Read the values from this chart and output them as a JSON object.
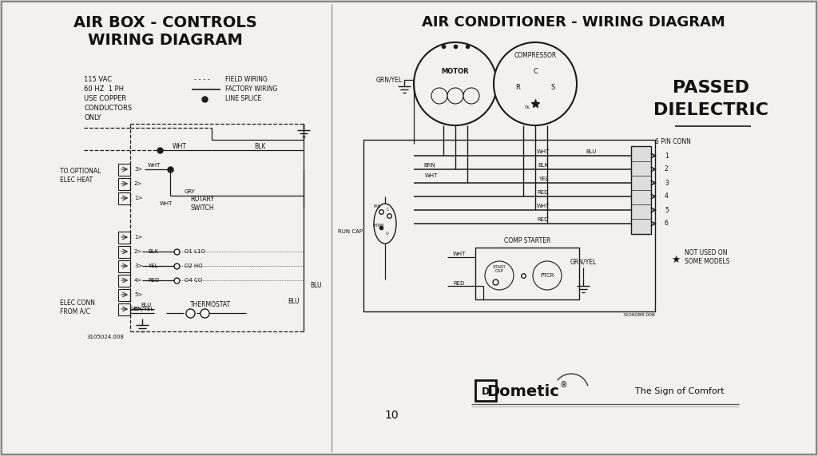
{
  "bg_color": "#c8c8c8",
  "page_color": "#f2f1ee",
  "line_color": "#1a1a1a",
  "font_color": "#111111",
  "title_left_line1": "AIR BOX - CONTROLS",
  "title_left_line2": "WIRING DIAGRAM",
  "title_right": "AIR CONDITIONER - WIRING DIAGRAM",
  "passed_line1": "PASSED",
  "passed_line2": "DIELECTRIC",
  "dometic_tagline": "The Sign of Comfort",
  "page_number": "10",
  "part_num_left": "3105024.008",
  "part_num_right": "3106088.008",
  "legend_vac": "115 VAC",
  "legend_hz": "60 HZ  1 PH",
  "legend_copper": "USE COPPER",
  "legend_cond": "CONDUCTORS",
  "legend_only": "ONLY",
  "legend_field": "FIELD WIRING",
  "legend_factory": "FACTORY WIRING",
  "legend_splice": "LINE SPLICE",
  "to_optional": "TO OPTIONAL\nELEC HEAT",
  "rotary_switch": "ROTARY\nSWITCH",
  "elec_conn": "ELEC CONN\nFROM A/C",
  "thermostat": "THERMOSTAT",
  "motor_label": "MOTOR",
  "compressor_label": "COMPRESSOR",
  "connector_label": "6 PIN CONN",
  "run_cap": "RUN CAP",
  "comp_starter": "COMP STARTER",
  "start_cap": "START\nCAP",
  "ptcr": "PTCR",
  "grn_yel": "GRN/YEL",
  "not_used": "NOT USED ON\nSOME MODELS",
  "wht": "WHT",
  "blk": "BLK",
  "gry": "GRY",
  "blu": "BLU",
  "brn": "BRN",
  "yel": "YEL",
  "red": "RED"
}
